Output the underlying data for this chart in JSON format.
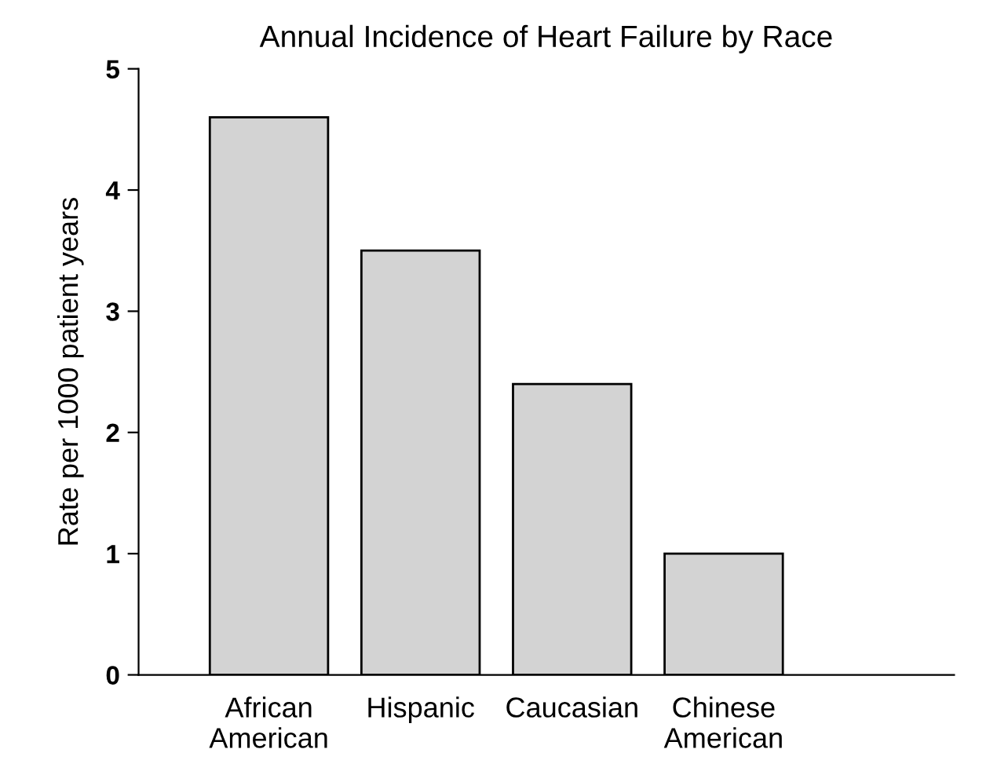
{
  "chart_data": {
    "type": "bar",
    "title": "Annual Incidence of Heart Failure by Race",
    "ylabel": "Rate per 1000 patient years",
    "categories": [
      "African\nAmerican",
      "Hispanic",
      "Caucasian",
      "Chinese\nAmerican"
    ],
    "values": [
      4.6,
      3.5,
      2.4,
      1.0
    ],
    "color": "#d3d3d3",
    "ylim": [
      0,
      5
    ],
    "yticks": [
      0,
      1,
      2,
      3,
      4,
      5
    ],
    "grid": false
  }
}
